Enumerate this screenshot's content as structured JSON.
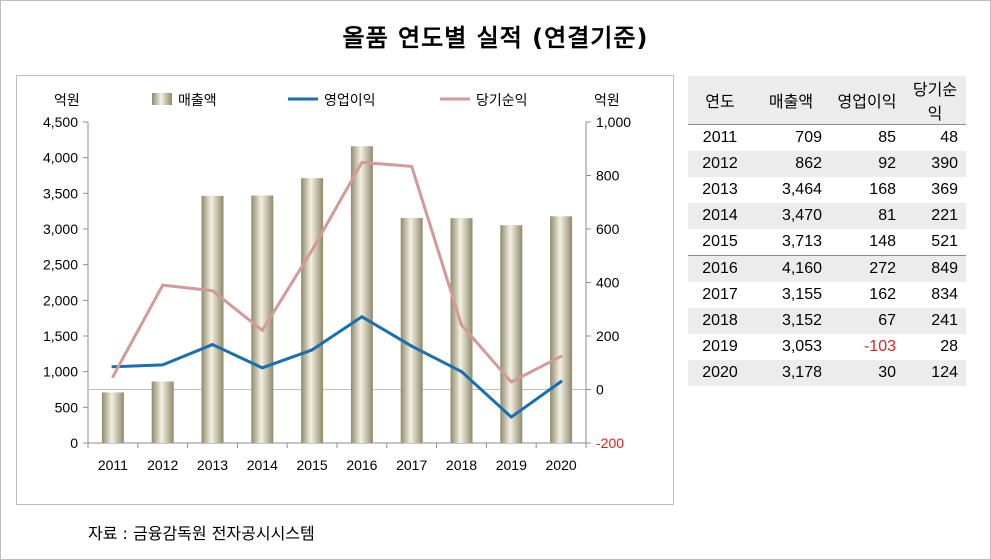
{
  "title": "올품 연도별 실적 (연결기준)",
  "source": "자료 : 금융감독원 전자공시시스템",
  "colors": {
    "revenue": "#c9c0a0",
    "operating_profit": "#1a6fb0",
    "net_income": "#d49a98",
    "negative": "#e02020"
  },
  "chart_data": {
    "type": "bar",
    "categories": [
      "2011",
      "2012",
      "2013",
      "2014",
      "2015",
      "2016",
      "2017",
      "2018",
      "2019",
      "2020"
    ],
    "y_left": {
      "unit": "억원",
      "range": [
        0,
        4500
      ],
      "ticks": [
        "0",
        "500",
        "1,000",
        "1,500",
        "2,000",
        "2,500",
        "3,000",
        "3,500",
        "4,000",
        "4,500"
      ]
    },
    "y_right": {
      "unit": "억원",
      "range": [
        -200,
        1000
      ],
      "ticks": [
        "-200",
        "0",
        "200",
        "400",
        "600",
        "800",
        "1,000"
      ]
    },
    "legend": [
      "매출액",
      "영업이익",
      "당기순익"
    ],
    "legend_position": "top",
    "series": [
      {
        "name": "매출액",
        "type": "bar",
        "axis": "left",
        "values": [
          709,
          862,
          3464,
          3470,
          3713,
          4160,
          3155,
          3152,
          3053,
          3178
        ]
      },
      {
        "name": "영업이익",
        "type": "line",
        "axis": "right",
        "values": [
          85,
          92,
          168,
          81,
          148,
          272,
          162,
          67,
          -103,
          30
        ]
      },
      {
        "name": "당기순익",
        "type": "line",
        "axis": "right",
        "values": [
          48,
          390,
          369,
          221,
          521,
          849,
          834,
          241,
          28,
          124
        ]
      }
    ],
    "grid": false
  },
  "table": {
    "headers": [
      "연도",
      "매출액",
      "영업이익",
      "당기순익"
    ],
    "rows": [
      [
        "2011",
        "709",
        "85",
        "48"
      ],
      [
        "2012",
        "862",
        "92",
        "390"
      ],
      [
        "2013",
        "3,464",
        "168",
        "369"
      ],
      [
        "2014",
        "3,470",
        "81",
        "221"
      ],
      [
        "2015",
        "3,713",
        "148",
        "521"
      ],
      [
        "2016",
        "4,160",
        "272",
        "849"
      ],
      [
        "2017",
        "3,155",
        "162",
        "834"
      ],
      [
        "2018",
        "3,152",
        "67",
        "241"
      ],
      [
        "2019",
        "3,053",
        "-103",
        "28"
      ],
      [
        "2020",
        "3,178",
        "30",
        "124"
      ]
    ]
  }
}
